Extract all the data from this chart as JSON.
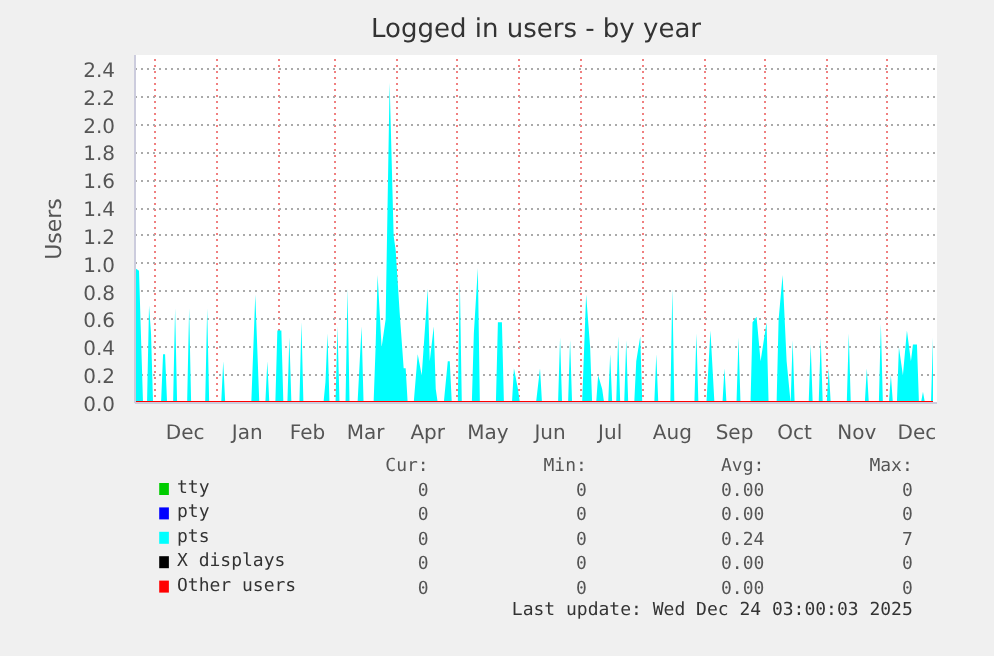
{
  "chart_data": {
    "type": "area",
    "title": "Logged in users - by year",
    "ylabel": "Users",
    "xlim": [
      "2024-11-21",
      "2025-12-26"
    ],
    "ylim": [
      0,
      2.5
    ],
    "yticks": [
      {
        "value": 0,
        "label": "0.0"
      },
      0.2,
      0.4,
      0.6,
      0.8,
      {
        "value": 1,
        "label": "1.0"
      },
      1.2,
      1.4,
      1.6,
      1.8,
      {
        "value": 2,
        "label": "2.0"
      },
      2.2,
      2.4
    ],
    "xticks": [
      {
        "value": "2024-12-01",
        "label": null
      },
      {
        "value": "2024-12-16",
        "label": "Dec"
      },
      {
        "value": "2025-01-01",
        "label": null
      },
      {
        "value": "2025-01-16",
        "label": "Jan"
      },
      {
        "value": "2025-02-01",
        "label": null
      },
      {
        "value": "2025-02-15",
        "label": "Feb"
      },
      {
        "value": "2025-03-01",
        "label": null
      },
      {
        "value": "2025-03-16",
        "label": "Mar"
      },
      {
        "value": "2025-04-01",
        "label": null
      },
      {
        "value": "2025-04-16",
        "label": "Apr"
      },
      {
        "value": "2025-05-01",
        "label": null
      },
      {
        "value": "2025-05-16",
        "label": "May"
      },
      {
        "value": "2025-06-01",
        "label": null
      },
      {
        "value": "2025-06-16",
        "label": "Jun"
      },
      {
        "value": "2025-07-01",
        "label": null
      },
      {
        "value": "2025-07-16",
        "label": "Jul"
      },
      {
        "value": "2025-08-01",
        "label": null
      },
      {
        "value": "2025-08-16",
        "label": "Aug"
      },
      {
        "value": "2025-09-01",
        "label": null
      },
      {
        "value": "2025-09-16",
        "label": "Sep"
      },
      {
        "value": "2025-10-01",
        "label": null
      },
      {
        "value": "2025-10-16",
        "label": "Oct"
      },
      {
        "value": "2025-11-01",
        "label": null
      },
      {
        "value": "2025-11-16",
        "label": "Nov"
      },
      {
        "value": "2025-12-01",
        "label": null
      },
      {
        "value": "2025-12-16",
        "label": "Dec"
      }
    ],
    "grid": true,
    "legend": "bottom",
    "series": [
      {
        "name": "tty",
        "color": "#00cc00"
      },
      {
        "name": "pty",
        "color": "#0000ff"
      },
      {
        "name": "pts",
        "color": "#00ffff",
        "x": [
          "2024-11-21",
          "2024-11-23",
          "2024-11-25",
          "2024-11-27",
          "2024-11-28",
          "2024-11-29",
          "2024-11-30",
          "2024-12-04",
          "2024-12-05",
          "2024-12-06",
          "2024-12-07",
          "2024-12-10",
          "2024-12-11",
          "2024-12-12",
          "2024-12-17",
          "2024-12-18",
          "2024-12-19",
          "2024-12-26",
          "2024-12-27",
          "2024-12-28",
          "2025-01-03",
          "2025-01-04",
          "2025-01-05",
          "2025-01-18",
          "2025-01-20",
          "2025-01-22",
          "2025-01-25",
          "2025-01-26",
          "2025-01-27",
          "2025-01-30",
          "2025-01-31",
          "2025-02-02",
          "2025-02-03",
          "2025-02-05",
          "2025-02-06",
          "2025-02-07",
          "2025-02-11",
          "2025-02-12",
          "2025-02-13",
          "2025-02-23",
          "2025-02-24",
          "2025-02-25",
          "2025-02-26",
          "2025-03-01",
          "2025-03-02",
          "2025-03-03",
          "2025-03-06",
          "2025-03-07",
          "2025-03-08",
          "2025-03-12",
          "2025-03-14",
          "2025-03-15",
          "2025-03-20",
          "2025-03-21",
          "2025-03-22",
          "2025-03-24",
          "2025-03-26",
          "2025-03-28",
          "2025-03-30",
          "2025-03-31",
          "2025-04-02",
          "2025-04-04",
          "2025-04-05",
          "2025-04-06",
          "2025-04-09",
          "2025-04-11",
          "2025-04-13",
          "2025-04-16",
          "2025-04-17",
          "2025-04-19",
          "2025-04-20",
          "2025-04-21",
          "2025-04-24",
          "2025-04-26",
          "2025-04-27",
          "2025-04-28",
          "2025-05-01",
          "2025-05-02",
          "2025-05-03",
          "2025-05-08",
          "2025-05-09",
          "2025-05-11",
          "2025-05-12",
          "2025-05-20",
          "2025-05-21",
          "2025-05-23",
          "2025-05-24",
          "2025-05-28",
          "2025-05-29",
          "2025-05-31",
          "2025-06-01",
          "2025-06-09",
          "2025-06-11",
          "2025-06-12",
          "2025-06-20",
          "2025-06-21",
          "2025-06-22",
          "2025-06-25",
          "2025-06-26",
          "2025-06-27",
          "2025-07-02",
          "2025-07-04",
          "2025-07-06",
          "2025-07-07",
          "2025-07-09",
          "2025-07-10",
          "2025-07-12",
          "2025-07-13",
          "2025-07-15",
          "2025-07-16",
          "2025-07-17",
          "2025-07-19",
          "2025-07-20",
          "2025-07-21",
          "2025-07-23",
          "2025-07-24",
          "2025-07-25",
          "2025-07-28",
          "2025-07-29",
          "2025-07-31",
          "2025-08-01",
          "2025-08-07",
          "2025-08-08",
          "2025-08-09",
          "2025-08-15",
          "2025-08-16",
          "2025-08-17",
          "2025-08-27",
          "2025-08-28",
          "2025-08-29",
          "2025-09-02",
          "2025-09-04",
          "2025-09-06",
          "2025-09-10",
          "2025-09-11",
          "2025-09-12",
          "2025-09-17",
          "2025-09-18",
          "2025-09-19",
          "2025-09-24",
          "2025-09-25",
          "2025-09-27",
          "2025-09-29",
          "2025-10-02",
          "2025-10-03",
          "2025-10-07",
          "2025-10-08",
          "2025-10-10",
          "2025-10-12",
          "2025-10-14",
          "2025-10-15",
          "2025-10-16",
          "2025-10-23",
          "2025-10-24",
          "2025-10-25",
          "2025-10-28",
          "2025-10-29",
          "2025-10-30",
          "2025-11-01",
          "2025-11-02",
          "2025-11-03",
          "2025-11-11",
          "2025-11-12",
          "2025-11-13",
          "2025-11-20",
          "2025-11-21",
          "2025-11-22",
          "2025-11-27",
          "2025-11-28",
          "2025-11-29",
          "2025-12-02",
          "2025-12-03",
          "2025-12-04",
          "2025-12-06",
          "2025-12-07",
          "2025-12-09",
          "2025-12-11",
          "2025-12-13",
          "2025-12-14",
          "2025-12-16",
          "2025-12-17",
          "2025-12-18",
          "2025-12-19",
          "2025-12-20",
          "2025-12-23",
          "2025-12-24"
        ],
        "values": [
          0.97,
          0.95,
          0,
          0,
          0.7,
          0.5,
          0,
          0,
          0.35,
          0.35,
          0,
          0,
          0.68,
          0,
          0,
          0.68,
          0,
          0,
          0.68,
          0,
          0,
          0.3,
          0,
          0,
          0.78,
          0,
          0,
          0.3,
          0,
          0,
          0.52,
          0.52,
          0,
          0,
          0.47,
          0,
          0,
          0.58,
          0,
          0,
          0.15,
          0.5,
          0,
          0,
          0.55,
          0,
          0,
          0.82,
          0,
          0,
          0.55,
          0,
          0,
          0.4,
          0.92,
          0.4,
          0.6,
          2.3,
          1.2,
          1.1,
          0.65,
          0.25,
          0.25,
          0,
          0,
          0.35,
          0.2,
          0.82,
          0.3,
          0.55,
          0.1,
          0,
          0,
          0.3,
          0.3,
          0,
          0,
          0.88,
          0,
          0,
          0.5,
          0.97,
          0,
          0,
          0.58,
          0.58,
          0,
          0,
          0.25,
          0.1,
          0,
          0,
          0.25,
          0,
          0,
          0.47,
          0,
          0,
          0.45,
          0,
          0,
          0.78,
          0.4,
          0,
          0,
          0.2,
          0.1,
          0,
          0,
          0.35,
          0,
          0,
          0.48,
          0,
          0,
          0.45,
          0,
          0,
          0.3,
          0.48,
          0,
          0,
          0.35,
          0,
          0,
          0.82,
          0,
          0,
          0.5,
          0,
          0,
          0.52,
          0,
          0,
          0.25,
          0,
          0,
          0.47,
          0,
          0,
          0.58,
          0.62,
          0.3,
          0.58,
          0,
          0,
          0.6,
          0.92,
          0.3,
          0,
          0.45,
          0,
          0,
          0.42,
          0,
          0,
          0.47,
          0,
          0,
          0.25,
          0,
          0,
          0.5,
          0,
          0,
          0.25,
          0,
          0,
          0.57,
          0,
          0,
          0.2,
          0,
          0,
          0.4,
          0.2,
          0.52,
          0.3,
          0.42,
          0.42,
          0,
          0,
          0.08,
          0,
          0,
          0.47
        ]
      },
      {
        "name": "X displays",
        "color": "#000000"
      },
      {
        "name": "Other users",
        "type": "line",
        "color": "#ff0000",
        "x": [
          "2024-11-21",
          "2025-12-24"
        ],
        "values": [
          0,
          0
        ]
      }
    ],
    "annotations": [
      "Cur:",
      "Min:",
      "Avg:",
      "Max:",
      "0",
      "0",
      "0.00",
      "0",
      "0",
      "0",
      "0.00",
      "0",
      "0",
      "0",
      "0.24",
      "7",
      "0",
      "0",
      "0.00",
      "0",
      "0",
      "0",
      "0.00",
      "0",
      "Last update: Wed Dec 24 03:00:03 2025"
    ]
  }
}
